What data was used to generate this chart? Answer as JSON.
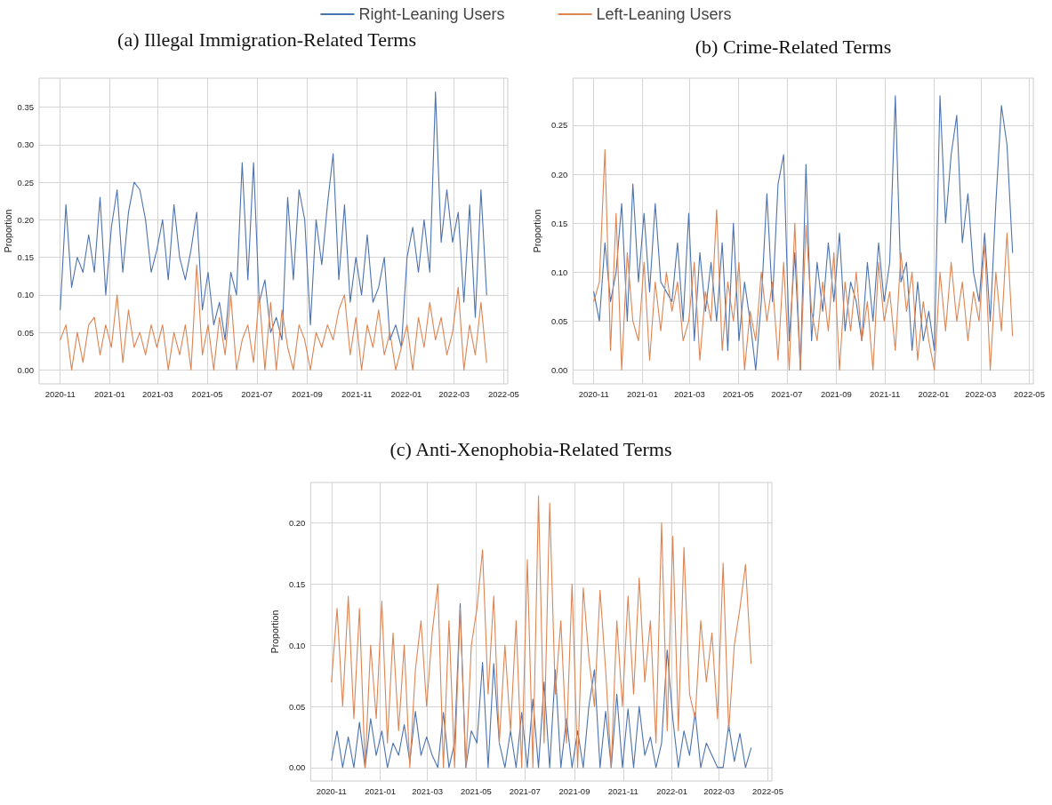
{
  "chart_data": [
    {
      "type": "line",
      "title": "(a) Illegal Immigration-Related Terms",
      "ylabel": "Proportion",
      "legend": "top",
      "grid": true,
      "marker": "none",
      "line_style": "solid",
      "x": [
        "2020-11-01",
        "2020-11-08",
        "2020-11-15",
        "2020-11-22",
        "2020-11-29",
        "2020-12-06",
        "2020-12-13",
        "2020-12-20",
        "2020-12-27",
        "2021-01-03",
        "2021-01-10",
        "2021-01-17",
        "2021-01-24",
        "2021-01-31",
        "2021-02-07",
        "2021-02-14",
        "2021-02-21",
        "2021-02-28",
        "2021-03-07",
        "2021-03-14",
        "2021-03-21",
        "2021-03-28",
        "2021-04-04",
        "2021-04-11",
        "2021-04-18",
        "2021-04-25",
        "2021-05-02",
        "2021-05-09",
        "2021-05-16",
        "2021-05-23",
        "2021-05-30",
        "2021-06-06",
        "2021-06-13",
        "2021-06-20",
        "2021-06-27",
        "2021-07-04",
        "2021-07-11",
        "2021-07-18",
        "2021-07-25",
        "2021-08-01",
        "2021-08-08",
        "2021-08-15",
        "2021-08-22",
        "2021-08-29",
        "2021-09-05",
        "2021-09-12",
        "2021-09-19",
        "2021-09-26",
        "2021-10-03",
        "2021-10-10",
        "2021-10-17",
        "2021-10-24",
        "2021-10-31",
        "2021-11-07",
        "2021-11-14",
        "2021-11-21",
        "2021-11-28",
        "2021-12-05",
        "2021-12-12",
        "2021-12-19",
        "2021-12-26",
        "2022-01-02",
        "2022-01-09",
        "2022-01-16",
        "2022-01-23",
        "2022-01-30",
        "2022-02-06",
        "2022-02-13",
        "2022-02-20",
        "2022-02-27",
        "2022-03-06",
        "2022-03-13",
        "2022-03-20",
        "2022-03-27",
        "2022-04-03",
        "2022-04-10"
      ],
      "series": [
        {
          "name": "Right-Leaning Users",
          "color": "#4c72b0",
          "values": [
            0.08,
            0.22,
            0.11,
            0.15,
            0.13,
            0.18,
            0.13,
            0.23,
            0.1,
            0.19,
            0.24,
            0.13,
            0.21,
            0.25,
            0.24,
            0.2,
            0.13,
            0.16,
            0.2,
            0.12,
            0.22,
            0.15,
            0.12,
            0.16,
            0.21,
            0.08,
            0.13,
            0.06,
            0.09,
            0.04,
            0.13,
            0.1,
            0.276,
            0.12,
            0.276,
            0.09,
            0.12,
            0.05,
            0.07,
            0.04,
            0.23,
            0.12,
            0.24,
            0.2,
            0.06,
            0.2,
            0.14,
            0.22,
            0.288,
            0.12,
            0.22,
            0.09,
            0.15,
            0.1,
            0.18,
            0.09,
            0.11,
            0.15,
            0.04,
            0.06,
            0.03,
            0.15,
            0.19,
            0.13,
            0.2,
            0.13,
            0.37,
            0.17,
            0.24,
            0.17,
            0.21,
            0.09,
            0.22,
            0.07,
            0.24,
            0.1
          ]
        },
        {
          "name": "Left-Leaning Users",
          "color": "#dd8452",
          "values": [
            0.04,
            0.06,
            0.0,
            0.05,
            0.01,
            0.06,
            0.07,
            0.02,
            0.06,
            0.03,
            0.1,
            0.01,
            0.08,
            0.03,
            0.05,
            0.02,
            0.06,
            0.03,
            0.06,
            0.0,
            0.05,
            0.02,
            0.06,
            0.0,
            0.14,
            0.02,
            0.06,
            0.0,
            0.07,
            0.02,
            0.1,
            0.0,
            0.04,
            0.06,
            0.01,
            0.1,
            0.0,
            0.09,
            0.0,
            0.08,
            0.03,
            0.0,
            0.06,
            0.04,
            0.0,
            0.05,
            0.03,
            0.06,
            0.04,
            0.08,
            0.1,
            0.02,
            0.07,
            0.0,
            0.06,
            0.03,
            0.08,
            0.02,
            0.05,
            0.0,
            0.03,
            0.06,
            0.0,
            0.07,
            0.03,
            0.09,
            0.04,
            0.07,
            0.02,
            0.05,
            0.11,
            0.0,
            0.06,
            0.02,
            0.09,
            0.01
          ]
        }
      ],
      "xlim": [
        "2020-10-06",
        "2022-05-06"
      ],
      "xticks": [
        {
          "value": "2020-11",
          "label": "2020-11"
        },
        {
          "value": "2021-01",
          "label": "2021-01"
        },
        {
          "value": "2021-03",
          "label": "2021-03"
        },
        {
          "value": "2021-05",
          "label": "2021-05"
        },
        {
          "value": "2021-07",
          "label": "2021-07"
        },
        {
          "value": "2021-09",
          "label": "2021-09"
        },
        {
          "value": "2021-11",
          "label": "2021-11"
        },
        {
          "value": "2022-01",
          "label": "2022-01"
        },
        {
          "value": "2022-03",
          "label": "2022-03"
        },
        {
          "value": "2022-05",
          "label": "2022-05"
        }
      ],
      "ylim": [
        -0.0185,
        0.3885
      ],
      "yticks": [
        {
          "value": 0,
          "label": "0.00"
        },
        {
          "value": 0.05,
          "label": "0.05"
        },
        {
          "value": 0.1,
          "label": "0.10"
        },
        {
          "value": 0.15,
          "label": "0.15"
        },
        {
          "value": 0.2,
          "label": "0.20"
        },
        {
          "value": 0.25,
          "label": "0.25"
        },
        {
          "value": 0.3,
          "label": "0.30"
        },
        {
          "value": 0.35,
          "label": "0.35"
        }
      ]
    },
    {
      "type": "line",
      "title": "(b) Crime-Related Terms",
      "ylabel": "Proportion",
      "grid": true,
      "marker": "none",
      "line_style": "solid",
      "x": [
        "2020-11-01",
        "2020-11-08",
        "2020-11-15",
        "2020-11-22",
        "2020-11-29",
        "2020-12-06",
        "2020-12-13",
        "2020-12-20",
        "2020-12-27",
        "2021-01-03",
        "2021-01-10",
        "2021-01-17",
        "2021-01-24",
        "2021-01-31",
        "2021-02-07",
        "2021-02-14",
        "2021-02-21",
        "2021-02-28",
        "2021-03-07",
        "2021-03-14",
        "2021-03-21",
        "2021-03-28",
        "2021-04-04",
        "2021-04-11",
        "2021-04-18",
        "2021-04-25",
        "2021-05-02",
        "2021-05-09",
        "2021-05-16",
        "2021-05-23",
        "2021-05-30",
        "2021-06-06",
        "2021-06-13",
        "2021-06-20",
        "2021-06-27",
        "2021-07-04",
        "2021-07-11",
        "2021-07-18",
        "2021-07-25",
        "2021-08-01",
        "2021-08-08",
        "2021-08-15",
        "2021-08-22",
        "2021-08-29",
        "2021-09-05",
        "2021-09-12",
        "2021-09-19",
        "2021-09-26",
        "2021-10-03",
        "2021-10-10",
        "2021-10-17",
        "2021-10-24",
        "2021-10-31",
        "2021-11-07",
        "2021-11-14",
        "2021-11-21",
        "2021-11-28",
        "2021-12-05",
        "2021-12-12",
        "2021-12-19",
        "2021-12-26",
        "2022-01-02",
        "2022-01-09",
        "2022-01-16",
        "2022-01-23",
        "2022-01-30",
        "2022-02-06",
        "2022-02-13",
        "2022-02-20",
        "2022-02-27",
        "2022-03-06",
        "2022-03-13",
        "2022-03-20",
        "2022-03-27",
        "2022-04-03",
        "2022-04-10"
      ],
      "series": [
        {
          "color": "#4c72b0",
          "values": [
            0.08,
            0.05,
            0.13,
            0.07,
            0.1,
            0.17,
            0.05,
            0.19,
            0.09,
            0.16,
            0.08,
            0.17,
            0.09,
            0.08,
            0.07,
            0.13,
            0.05,
            0.16,
            0.03,
            0.12,
            0.06,
            0.11,
            0.05,
            0.13,
            0.02,
            0.15,
            0.03,
            0.09,
            0.05,
            0.0,
            0.07,
            0.18,
            0.07,
            0.19,
            0.22,
            0.03,
            0.12,
            0.0,
            0.21,
            0.03,
            0.11,
            0.06,
            0.13,
            0.07,
            0.14,
            0.04,
            0.09,
            0.07,
            0.03,
            0.11,
            0.05,
            0.13,
            0.07,
            0.11,
            0.28,
            0.09,
            0.11,
            0.02,
            0.09,
            0.03,
            0.06,
            0.02,
            0.28,
            0.15,
            0.22,
            0.26,
            0.13,
            0.18,
            0.1,
            0.07,
            0.14,
            0.05,
            0.17,
            0.27,
            0.23,
            0.12
          ]
        },
        {
          "color": "#dd8452",
          "values": [
            0.07,
            0.09,
            0.225,
            0.02,
            0.16,
            0.0,
            0.12,
            0.05,
            0.03,
            0.11,
            0.01,
            0.09,
            0.04,
            0.1,
            0.06,
            0.09,
            0.03,
            0.05,
            0.11,
            0.01,
            0.08,
            0.05,
            0.164,
            0.02,
            0.09,
            0.05,
            0.11,
            0.0,
            0.06,
            0.03,
            0.1,
            0.05,
            0.09,
            0.01,
            0.11,
            0.0,
            0.15,
            0.0,
            0.148,
            0.06,
            0.03,
            0.09,
            0.04,
            0.12,
            0.0,
            0.09,
            0.04,
            0.1,
            0.03,
            0.07,
            0.0,
            0.11,
            0.05,
            0.08,
            0.02,
            0.12,
            0.06,
            0.1,
            0.01,
            0.07,
            0.03,
            0.0,
            0.1,
            0.04,
            0.11,
            0.05,
            0.09,
            0.03,
            0.08,
            0.05,
            0.13,
            0.0,
            0.1,
            0.04,
            0.14,
            0.035
          ]
        }
      ],
      "xlim": [
        "2020-10-06",
        "2022-05-06"
      ],
      "xticks": [
        {
          "value": "2020-11",
          "label": "2020-11"
        },
        {
          "value": "2021-01",
          "label": "2021-01"
        },
        {
          "value": "2021-03",
          "label": "2021-03"
        },
        {
          "value": "2021-05",
          "label": "2021-05"
        },
        {
          "value": "2021-07",
          "label": "2021-07"
        },
        {
          "value": "2021-09",
          "label": "2021-09"
        },
        {
          "value": "2021-11",
          "label": "2021-11"
        },
        {
          "value": "2022-01",
          "label": "2022-01"
        },
        {
          "value": "2022-03",
          "label": "2022-03"
        },
        {
          "value": "2022-05",
          "label": "2022-05"
        }
      ],
      "ylim": [
        -0.014,
        0.298
      ],
      "yticks": [
        {
          "value": 0,
          "label": "0.00"
        },
        {
          "value": 0.05,
          "label": "0.05"
        },
        {
          "value": 0.1,
          "label": "0.10"
        },
        {
          "value": 0.15,
          "label": "0.15"
        },
        {
          "value": 0.2,
          "label": "0.20"
        },
        {
          "value": 0.25,
          "label": "0.25"
        }
      ]
    },
    {
      "type": "line",
      "title": "(c) Anti-Xenophobia-Related Terms",
      "ylabel": "Proportion",
      "grid": true,
      "marker": "none",
      "line_style": "solid",
      "x": [
        "2020-11-01",
        "2020-11-08",
        "2020-11-15",
        "2020-11-22",
        "2020-11-29",
        "2020-12-06",
        "2020-12-13",
        "2020-12-20",
        "2020-12-27",
        "2021-01-03",
        "2021-01-10",
        "2021-01-17",
        "2021-01-24",
        "2021-01-31",
        "2021-02-07",
        "2021-02-14",
        "2021-02-21",
        "2021-02-28",
        "2021-03-07",
        "2021-03-14",
        "2021-03-21",
        "2021-03-28",
        "2021-04-04",
        "2021-04-11",
        "2021-04-18",
        "2021-04-25",
        "2021-05-02",
        "2021-05-09",
        "2021-05-16",
        "2021-05-23",
        "2021-05-30",
        "2021-06-06",
        "2021-06-13",
        "2021-06-20",
        "2021-06-27",
        "2021-07-04",
        "2021-07-11",
        "2021-07-18",
        "2021-07-25",
        "2021-08-01",
        "2021-08-08",
        "2021-08-15",
        "2021-08-22",
        "2021-08-29",
        "2021-09-05",
        "2021-09-12",
        "2021-09-19",
        "2021-09-26",
        "2021-10-03",
        "2021-10-10",
        "2021-10-17",
        "2021-10-24",
        "2021-10-31",
        "2021-11-07",
        "2021-11-14",
        "2021-11-21",
        "2021-11-28",
        "2021-12-05",
        "2021-12-12",
        "2021-12-19",
        "2021-12-26",
        "2022-01-02",
        "2022-01-09",
        "2022-01-16",
        "2022-01-23",
        "2022-01-30",
        "2022-02-06",
        "2022-02-13",
        "2022-02-20",
        "2022-02-27",
        "2022-03-06",
        "2022-03-13",
        "2022-03-20",
        "2022-03-27",
        "2022-04-03",
        "2022-04-10"
      ],
      "series": [
        {
          "color": "#4c72b0",
          "values": [
            0.006,
            0.03,
            0.0,
            0.025,
            0.0,
            0.037,
            0.0,
            0.04,
            0.01,
            0.03,
            0.0,
            0.02,
            0.01,
            0.035,
            0.005,
            0.046,
            0.01,
            0.025,
            0.01,
            0.0,
            0.045,
            0.0,
            0.02,
            0.134,
            0.0,
            0.03,
            0.02,
            0.086,
            0.0,
            0.085,
            0.02,
            0.0,
            0.03,
            0.0,
            0.045,
            0.0,
            0.056,
            0.0,
            0.07,
            0.0,
            0.08,
            0.0,
            0.04,
            0.0,
            0.03,
            0.0,
            0.05,
            0.08,
            0.0,
            0.046,
            0.0,
            0.06,
            0.0,
            0.048,
            0.0,
            0.05,
            0.01,
            0.025,
            0.0,
            0.02,
            0.096,
            0.04,
            0.0,
            0.03,
            0.01,
            0.045,
            0.0,
            0.02,
            0.01,
            0.0,
            0.0,
            0.035,
            0.005,
            0.028,
            0.0,
            0.016
          ]
        },
        {
          "color": "#dd8452",
          "values": [
            0.07,
            0.13,
            0.05,
            0.14,
            0.04,
            0.13,
            0.0,
            0.1,
            0.04,
            0.136,
            0.02,
            0.11,
            0.03,
            0.1,
            0.0,
            0.08,
            0.12,
            0.05,
            0.11,
            0.15,
            0.0,
            0.12,
            0.0,
            0.13,
            0.0,
            0.1,
            0.13,
            0.178,
            0.06,
            0.14,
            0.02,
            0.1,
            0.03,
            0.12,
            0.0,
            0.17,
            0.0,
            0.222,
            0.02,
            0.216,
            0.06,
            0.12,
            0.02,
            0.15,
            0.0,
            0.147,
            0.09,
            0.05,
            0.145,
            0.08,
            0.0,
            0.12,
            0.05,
            0.14,
            0.06,
            0.155,
            0.07,
            0.12,
            0.02,
            0.2,
            0.03,
            0.189,
            0.03,
            0.18,
            0.06,
            0.04,
            0.12,
            0.07,
            0.11,
            0.04,
            0.167,
            0.03,
            0.1,
            0.13,
            0.166,
            0.085
          ]
        }
      ],
      "xlim": [
        "2020-10-06",
        "2022-05-06"
      ],
      "xticks": [
        {
          "value": "2020-11",
          "label": "2020-11"
        },
        {
          "value": "2021-01",
          "label": "2021-01"
        },
        {
          "value": "2021-03",
          "label": "2021-03"
        },
        {
          "value": "2021-05",
          "label": "2021-05"
        },
        {
          "value": "2021-07",
          "label": "2021-07"
        },
        {
          "value": "2021-09",
          "label": "2021-09"
        },
        {
          "value": "2021-11",
          "label": "2021-11"
        },
        {
          "value": "2022-01",
          "label": "2022-01"
        },
        {
          "value": "2022-03",
          "label": "2022-03"
        },
        {
          "value": "2022-05",
          "label": "2022-05"
        }
      ],
      "ylim": [
        -0.011,
        0.233
      ],
      "yticks": [
        {
          "value": 0,
          "label": "0.00"
        },
        {
          "value": 0.05,
          "label": "0.05"
        },
        {
          "value": 0.1,
          "label": "0.10"
        },
        {
          "value": 0.15,
          "label": "0.15"
        },
        {
          "value": 0.2,
          "label": "0.20"
        }
      ]
    }
  ]
}
